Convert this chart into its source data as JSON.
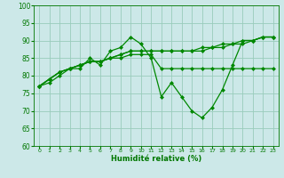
{
  "xlabel": "Humidité relative (%)",
  "background_color": "#cce8e8",
  "grid_color": "#99ccbb",
  "line_color": "#008800",
  "xlim": [
    -0.5,
    23.5
  ],
  "ylim": [
    60,
    100
  ],
  "yticks": [
    60,
    65,
    70,
    75,
    80,
    85,
    90,
    95,
    100
  ],
  "xticks": [
    0,
    1,
    2,
    3,
    4,
    5,
    6,
    7,
    8,
    9,
    10,
    11,
    12,
    13,
    14,
    15,
    16,
    17,
    18,
    19,
    20,
    21,
    22,
    23
  ],
  "series": [
    [
      77,
      79,
      81,
      82,
      82,
      85,
      83,
      87,
      88,
      91,
      89,
      85,
      74,
      78,
      74,
      70,
      68,
      71,
      76,
      83,
      90,
      90,
      91,
      91
    ],
    [
      77,
      79,
      81,
      82,
      83,
      84,
      84,
      85,
      85,
      86,
      86,
      86,
      82,
      82,
      82,
      82,
      82,
      82,
      82,
      82,
      82,
      82,
      82,
      82
    ],
    [
      77,
      79,
      81,
      82,
      83,
      84,
      84,
      85,
      86,
      87,
      87,
      87,
      87,
      87,
      87,
      87,
      88,
      88,
      89,
      89,
      90,
      90,
      91,
      91
    ],
    [
      77,
      78,
      80,
      82,
      83,
      84,
      84,
      85,
      86,
      87,
      87,
      87,
      87,
      87,
      87,
      87,
      87,
      88,
      88,
      89,
      89,
      90,
      91,
      91
    ]
  ],
  "tick_color": "#007700",
  "xlabel_fontsize": 6.0,
  "xlabel_bold": true,
  "xtick_fontsize": 4.5,
  "ytick_fontsize": 5.5,
  "marker_size": 2.0,
  "line_width": 0.9
}
